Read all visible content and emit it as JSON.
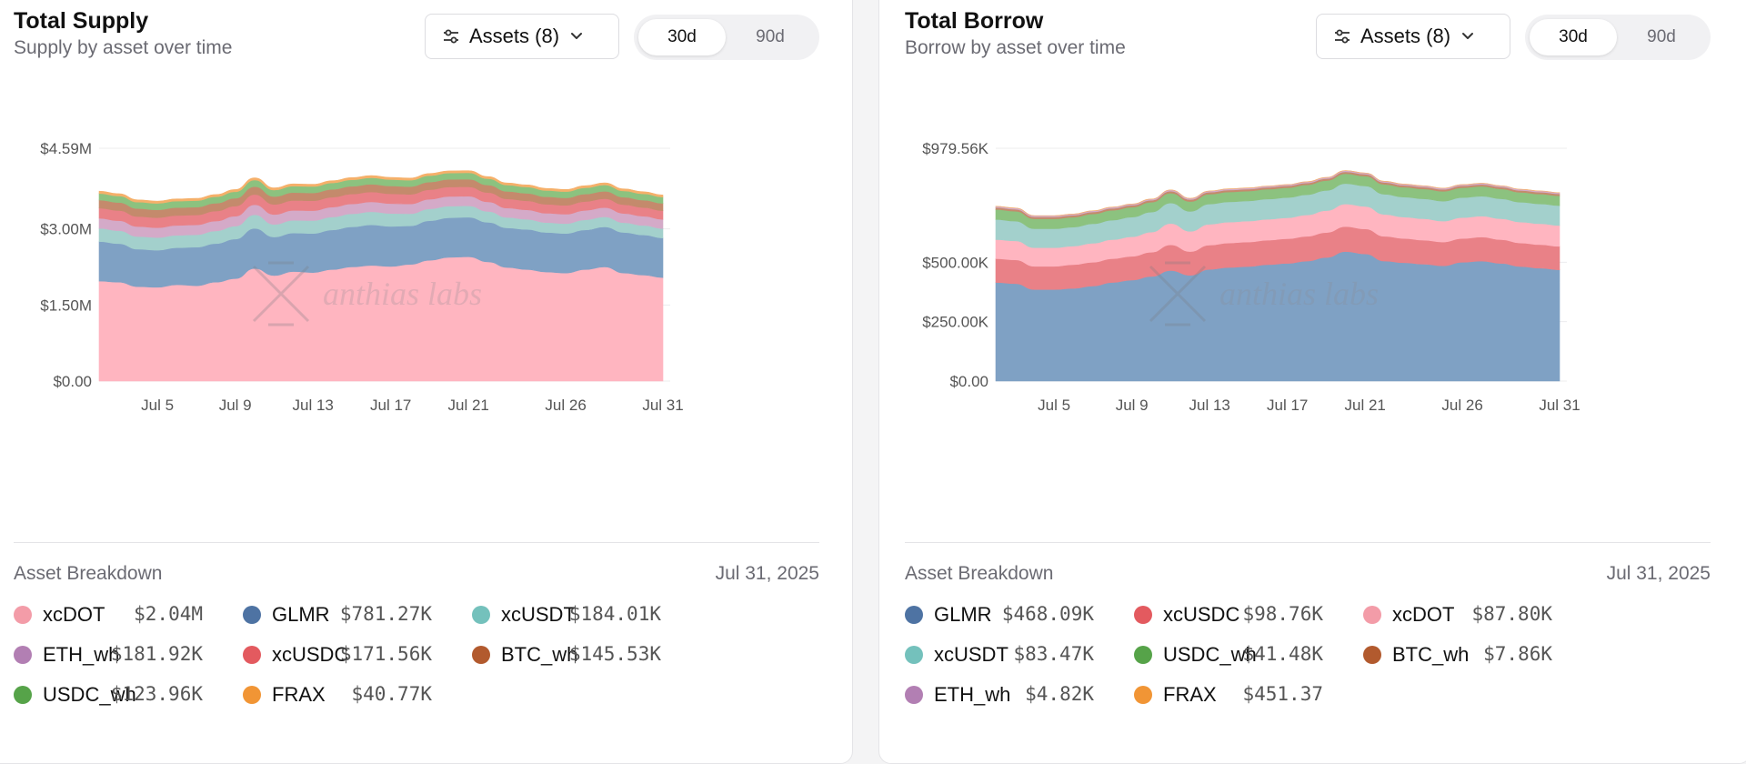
{
  "supply": {
    "title": "Total Supply",
    "subtitle": "Supply by asset over time",
    "assets_label": "Assets (8)",
    "range": [
      "30d",
      "90d"
    ],
    "active_range": "30d",
    "breakdown_title": "Asset Breakdown",
    "breakdown_date": "Jul 31, 2025",
    "watermark": "anthias labs",
    "legend": [
      {
        "name": "xcDOT",
        "value": "$2.04M",
        "color": "#f39ca8"
      },
      {
        "name": "GLMR",
        "value": "$781.27K",
        "color": "#4e73a3"
      },
      {
        "name": "xcUSDT",
        "value": "$184.01K",
        "color": "#74c1bc"
      },
      {
        "name": "ETH_wh",
        "value": "$181.92K",
        "color": "#b27fb3"
      },
      {
        "name": "xcUSDC",
        "value": "$171.56K",
        "color": "#e35a5f"
      },
      {
        "name": "BTC_wh",
        "value": "$145.53K",
        "color": "#b25a2e"
      },
      {
        "name": "USDC_wh",
        "value": "$123.96K",
        "color": "#56a349"
      },
      {
        "name": "FRAX",
        "value": "$40.77K",
        "color": "#f19535"
      }
    ]
  },
  "borrow": {
    "title": "Total Borrow",
    "subtitle": "Borrow by asset over time",
    "assets_label": "Assets (8)",
    "range": [
      "30d",
      "90d"
    ],
    "active_range": "30d",
    "breakdown_title": "Asset Breakdown",
    "breakdown_date": "Jul 31, 2025",
    "watermark": "anthias labs",
    "legend": [
      {
        "name": "GLMR",
        "value": "$468.09K",
        "color": "#4e73a3"
      },
      {
        "name": "xcUSDC",
        "value": "$98.76K",
        "color": "#e35a5f"
      },
      {
        "name": "xcDOT",
        "value": "$87.80K",
        "color": "#f39ca8"
      },
      {
        "name": "xcUSDT",
        "value": "$83.47K",
        "color": "#74c1bc"
      },
      {
        "name": "USDC_wh",
        "value": "$41.48K",
        "color": "#56a349"
      },
      {
        "name": "BTC_wh",
        "value": "$7.86K",
        "color": "#b25a2e"
      },
      {
        "name": "ETH_wh",
        "value": "$4.82K",
        "color": "#b27fb3"
      },
      {
        "name": "FRAX",
        "value": "$451.37",
        "color": "#f19535"
      }
    ]
  },
  "chart_data": [
    {
      "type": "area",
      "stacked": true,
      "title": "Total Supply",
      "subtitle": "Supply by asset over time",
      "x": [
        "Jul 2",
        "Jul 3",
        "Jul 4",
        "Jul 5",
        "Jul 6",
        "Jul 7",
        "Jul 8",
        "Jul 9",
        "Jul 10",
        "Jul 11",
        "Jul 12",
        "Jul 13",
        "Jul 14",
        "Jul 15",
        "Jul 16",
        "Jul 17",
        "Jul 18",
        "Jul 19",
        "Jul 20",
        "Jul 21",
        "Jul 22",
        "Jul 23",
        "Jul 24",
        "Jul 25",
        "Jul 26",
        "Jul 27",
        "Jul 28",
        "Jul 29",
        "Jul 30",
        "Jul 31"
      ],
      "x_ticks": [
        "Jul 5",
        "Jul 9",
        "Jul 13",
        "Jul 17",
        "Jul 21",
        "Jul 26",
        "Jul 31"
      ],
      "y_ticks": [
        "$0.00",
        "$1.50M",
        "$3.00M",
        "$4.59M"
      ],
      "ylim": [
        0,
        4590000
      ],
      "grid": true,
      "series": [
        {
          "name": "xcDOT",
          "color": "#ffb5c0",
          "values": [
            1970000,
            1950000,
            1860000,
            1850000,
            1900000,
            1880000,
            1950000,
            2020000,
            2220000,
            2080000,
            2160000,
            2140000,
            2200000,
            2250000,
            2280000,
            2260000,
            2300000,
            2380000,
            2440000,
            2450000,
            2350000,
            2240000,
            2200000,
            2150000,
            2130000,
            2200000,
            2250000,
            2130000,
            2090000,
            2040000
          ]
        },
        {
          "name": "GLMR",
          "color": "#7fa1c4",
          "values": [
            780000,
            760000,
            740000,
            730000,
            730000,
            760000,
            760000,
            780000,
            790000,
            760000,
            760000,
            770000,
            780000,
            790000,
            800000,
            790000,
            760000,
            780000,
            780000,
            780000,
            780000,
            780000,
            790000,
            780000,
            780000,
            780000,
            790000,
            800000,
            790000,
            781270
          ]
        },
        {
          "name": "xcUSDT",
          "color": "#a3d0cc",
          "values": [
            260000,
            255000,
            250000,
            250000,
            245000,
            245000,
            250000,
            255000,
            270000,
            250000,
            250000,
            255000,
            255000,
            258000,
            258000,
            255000,
            240000,
            235000,
            230000,
            225000,
            215000,
            205000,
            200000,
            195000,
            195000,
            200000,
            198000,
            192000,
            188000,
            184010
          ]
        },
        {
          "name": "ETH_wh",
          "color": "#d4aac8",
          "values": [
            200000,
            198000,
            196000,
            195000,
            195000,
            195000,
            195000,
            196000,
            198000,
            195000,
            195000,
            195000,
            195000,
            195000,
            195000,
            195000,
            192000,
            190000,
            190000,
            190000,
            188000,
            186000,
            186000,
            185000,
            185000,
            185000,
            184000,
            183000,
            182000,
            181920
          ]
        },
        {
          "name": "xcUSDC",
          "color": "#e98187",
          "values": [
            200000,
            200000,
            198000,
            196000,
            195000,
            195000,
            196000,
            198000,
            200000,
            198000,
            196000,
            195000,
            195000,
            194000,
            194000,
            193000,
            190000,
            188000,
            186000,
            185000,
            183000,
            180000,
            178000,
            176000,
            175000,
            175000,
            174000,
            173000,
            172000,
            171560
          ]
        },
        {
          "name": "BTC_wh",
          "color": "#c48a6c",
          "values": [
            160000,
            158000,
            156000,
            155000,
            155000,
            155000,
            155000,
            155000,
            156000,
            155000,
            155000,
            155000,
            155000,
            154000,
            154000,
            153000,
            152000,
            151000,
            150000,
            150000,
            149000,
            148000,
            148000,
            147000,
            147000,
            147000,
            146000,
            146000,
            145500,
            145530
          ]
        },
        {
          "name": "USDC_wh",
          "color": "#8cc27f",
          "values": [
            130000,
            129000,
            128000,
            128000,
            128000,
            128000,
            128000,
            128000,
            129000,
            128000,
            128000,
            127000,
            127000,
            127000,
            127000,
            127000,
            126000,
            126000,
            126000,
            126000,
            125000,
            125000,
            125000,
            125000,
            124000,
            124000,
            124000,
            124000,
            124000,
            123960
          ]
        },
        {
          "name": "FRAX",
          "color": "#f5b06a",
          "values": [
            45000,
            45000,
            44000,
            44000,
            44000,
            44000,
            44000,
            44000,
            44000,
            43000,
            43000,
            43000,
            43000,
            43000,
            43000,
            42000,
            42000,
            42000,
            42000,
            42000,
            41000,
            41000,
            41000,
            41000,
            41000,
            41000,
            41000,
            41000,
            40800,
            40770
          ]
        }
      ]
    },
    {
      "type": "area",
      "stacked": true,
      "title": "Total Borrow",
      "subtitle": "Borrow by asset over time",
      "x": [
        "Jul 2",
        "Jul 3",
        "Jul 4",
        "Jul 5",
        "Jul 6",
        "Jul 7",
        "Jul 8",
        "Jul 9",
        "Jul 10",
        "Jul 11",
        "Jul 12",
        "Jul 13",
        "Jul 14",
        "Jul 15",
        "Jul 16",
        "Jul 17",
        "Jul 18",
        "Jul 19",
        "Jul 20",
        "Jul 21",
        "Jul 22",
        "Jul 23",
        "Jul 24",
        "Jul 25",
        "Jul 26",
        "Jul 27",
        "Jul 28",
        "Jul 29",
        "Jul 30",
        "Jul 31"
      ],
      "x_ticks": [
        "Jul 5",
        "Jul 9",
        "Jul 13",
        "Jul 17",
        "Jul 21",
        "Jul 26",
        "Jul 31"
      ],
      "y_ticks": [
        "$0.00",
        "$250.00K",
        "$500.00K",
        "$979.56K"
      ],
      "ylim": [
        0,
        979560
      ],
      "grid": true,
      "series": [
        {
          "name": "GLMR",
          "color": "#7fa1c4",
          "values": [
            415000,
            410000,
            385000,
            385000,
            390000,
            400000,
            415000,
            425000,
            440000,
            465000,
            445000,
            470000,
            478000,
            482000,
            490000,
            495000,
            505000,
            520000,
            545000,
            535000,
            505000,
            498000,
            492000,
            485000,
            500000,
            505000,
            495000,
            482000,
            475000,
            468090
          ]
        },
        {
          "name": "xcUSDC",
          "color": "#e98187",
          "values": [
            100000,
            100000,
            98000,
            98000,
            100000,
            100000,
            100000,
            100000,
            102000,
            108000,
            100000,
            102000,
            103000,
            103000,
            103000,
            104000,
            104000,
            105000,
            105000,
            105000,
            104000,
            102000,
            101000,
            100000,
            100000,
            101000,
            100000,
            99000,
            99000,
            98760
          ]
        },
        {
          "name": "xcDOT",
          "color": "#ffb5c0",
          "values": [
            80000,
            80000,
            78000,
            78000,
            78000,
            80000,
            80000,
            82000,
            85000,
            90000,
            85000,
            88000,
            88000,
            88000,
            88000,
            88000,
            90000,
            92000,
            95000,
            95000,
            92000,
            90000,
            90000,
            88000,
            88000,
            88000,
            88000,
            88000,
            88000,
            87800
          ]
        },
        {
          "name": "xcUSDT",
          "color": "#a3d0cc",
          "values": [
            85000,
            83000,
            80000,
            80000,
            80000,
            82000,
            82000,
            83000,
            84000,
            86000,
            84000,
            85000,
            85000,
            85000,
            85000,
            85000,
            85000,
            85000,
            86000,
            86000,
            85000,
            84000,
            84000,
            84000,
            84000,
            84000,
            84000,
            83500,
            83500,
            83470
          ]
        },
        {
          "name": "USDC_wh",
          "color": "#8cc27f",
          "values": [
            42000,
            42000,
            41500,
            41500,
            41500,
            41500,
            41500,
            41500,
            41500,
            42000,
            41500,
            41500,
            41500,
            41500,
            41500,
            41500,
            41500,
            41500,
            41500,
            41500,
            41500,
            41500,
            41500,
            41500,
            41500,
            41500,
            41500,
            41500,
            41500,
            41480
          ]
        },
        {
          "name": "BTC_wh",
          "color": "#c48a6c",
          "values": [
            8000,
            8000,
            8000,
            8000,
            8000,
            8000,
            8000,
            8000,
            8000,
            8000,
            8000,
            8000,
            8000,
            8000,
            7900,
            7900,
            7900,
            7900,
            7900,
            7900,
            7900,
            7900,
            7900,
            7900,
            7900,
            7900,
            7900,
            7900,
            7860,
            7860
          ]
        },
        {
          "name": "ETH_wh",
          "color": "#d4aac8",
          "values": [
            5000,
            5000,
            5000,
            5000,
            5000,
            5000,
            5000,
            5000,
            5000,
            5000,
            5000,
            5000,
            4900,
            4900,
            4900,
            4900,
            4900,
            4900,
            4900,
            4900,
            4900,
            4900,
            4900,
            4850,
            4850,
            4850,
            4850,
            4850,
            4820,
            4820
          ]
        },
        {
          "name": "FRAX",
          "color": "#f5b06a",
          "values": [
            460,
            460,
            460,
            460,
            460,
            460,
            460,
            460,
            460,
            460,
            460,
            455,
            455,
            455,
            455,
            455,
            455,
            455,
            455,
            455,
            455,
            455,
            455,
            455,
            452,
            452,
            452,
            452,
            451,
            451.37
          ]
        }
      ]
    }
  ]
}
